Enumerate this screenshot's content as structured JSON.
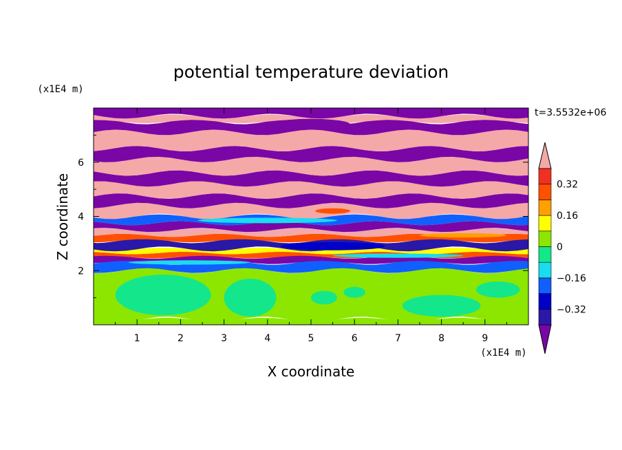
{
  "chart_data": {
    "type": "heatmap",
    "title": "potential temperature deviation",
    "xlabel": "X coordinate",
    "ylabel": "Z coordinate",
    "x_unit": "(x1E4 m)",
    "y_unit": "(x1E4 m)",
    "time_label": "t=3.5532e+06",
    "xlim": [
      0,
      10
    ],
    "ylim": [
      0,
      8
    ],
    "x_ticks": [
      "1",
      "2",
      "3",
      "4",
      "5",
      "6",
      "7",
      "8",
      "9"
    ],
    "y_ticks": [
      "2",
      "4",
      "6"
    ],
    "colorbar": {
      "levels": [
        -0.4,
        -0.32,
        -0.24,
        -0.16,
        -0.08,
        0,
        0.08,
        0.16,
        0.24,
        0.32,
        0.4
      ],
      "tick_labels": [
        "0.32",
        "0.16",
        "0",
        "−0.16",
        "−0.32"
      ],
      "colors": [
        "#7a06a6",
        "#2a18a8",
        "#0000c8",
        "#1060ff",
        "#19dcf0",
        "#14e68c",
        "#8ce600",
        "#ffff00",
        "#ffa000",
        "#ff5000",
        "#f03020",
        "#f4a8a8"
      ]
    },
    "bands": [
      {
        "z0": 0.0,
        "z1": 0.2,
        "color": "#8ce600"
      },
      {
        "z0": 0.2,
        "z1": 2.0,
        "color": "#8ce600"
      },
      {
        "z0": 2.0,
        "z1": 2.3,
        "color": "#1060ff"
      },
      {
        "z0": 2.3,
        "z1": 2.5,
        "color": "#7a06a6"
      },
      {
        "z0": 2.5,
        "z1": 2.65,
        "color": "#ff5000"
      },
      {
        "z0": 2.65,
        "z1": 2.8,
        "color": "#ffff00"
      },
      {
        "z0": 2.8,
        "z1": 3.1,
        "color": "#2a18a8"
      },
      {
        "z0": 3.1,
        "z1": 3.3,
        "color": "#ff5000"
      },
      {
        "z0": 3.3,
        "z1": 3.5,
        "color": "#f4a8a8"
      },
      {
        "z0": 3.5,
        "z1": 3.75,
        "color": "#7a06a6"
      },
      {
        "z0": 3.75,
        "z1": 4.0,
        "color": "#1060ff"
      },
      {
        "z0": 4.0,
        "z1": 4.4,
        "color": "#f4a8a8"
      },
      {
        "z0": 4.4,
        "z1": 4.75,
        "color": "#7a06a6"
      },
      {
        "z0": 4.75,
        "z1": 5.2,
        "color": "#f4a8a8"
      },
      {
        "z0": 5.2,
        "z1": 5.6,
        "color": "#7a06a6"
      },
      {
        "z0": 5.6,
        "z1": 6.1,
        "color": "#f4a8a8"
      },
      {
        "z0": 6.1,
        "z1": 6.5,
        "color": "#7a06a6"
      },
      {
        "z0": 6.5,
        "z1": 7.1,
        "color": "#f4a8a8"
      },
      {
        "z0": 7.1,
        "z1": 7.5,
        "color": "#7a06a6"
      },
      {
        "z0": 7.5,
        "z1": 7.7,
        "color": "#f4a8a8"
      },
      {
        "z0": 7.7,
        "z1": 8.0,
        "color": "#7a06a6"
      }
    ],
    "blobs": [
      {
        "x": 1.6,
        "z": 1.1,
        "rx": 1.1,
        "rz": 0.75,
        "color": "#14e68c"
      },
      {
        "x": 3.6,
        "z": 1.0,
        "rx": 0.6,
        "rz": 0.7,
        "color": "#14e68c"
      },
      {
        "x": 5.3,
        "z": 1.0,
        "rx": 0.3,
        "rz": 0.25,
        "color": "#14e68c"
      },
      {
        "x": 6.0,
        "z": 1.2,
        "rx": 0.25,
        "rz": 0.2,
        "color": "#14e68c"
      },
      {
        "x": 8.0,
        "z": 0.7,
        "rx": 0.9,
        "rz": 0.4,
        "color": "#14e68c"
      },
      {
        "x": 9.3,
        "z": 1.3,
        "rx": 0.5,
        "rz": 0.3,
        "color": "#14e68c"
      },
      {
        "x": 5.5,
        "z": 2.9,
        "rx": 1.2,
        "rz": 0.15,
        "color": "#0000c8"
      },
      {
        "x": 2.2,
        "z": 2.3,
        "rx": 1.4,
        "rz": 0.08,
        "color": "#19dcf0"
      },
      {
        "x": 7.0,
        "z": 2.55,
        "rx": 1.5,
        "rz": 0.08,
        "color": "#19dcf0"
      },
      {
        "x": 4.0,
        "z": 3.85,
        "rx": 1.6,
        "rz": 0.1,
        "color": "#19dcf0"
      },
      {
        "x": 8.5,
        "z": 3.3,
        "rx": 1.0,
        "rz": 0.08,
        "color": "#ffa000"
      },
      {
        "x": 5.5,
        "z": 4.2,
        "rx": 0.4,
        "rz": 0.1,
        "color": "#ff5000"
      },
      {
        "x": 5.0,
        "z": 7.4,
        "rx": 0.9,
        "rz": 0.2,
        "color": "#7a06a6"
      }
    ]
  }
}
